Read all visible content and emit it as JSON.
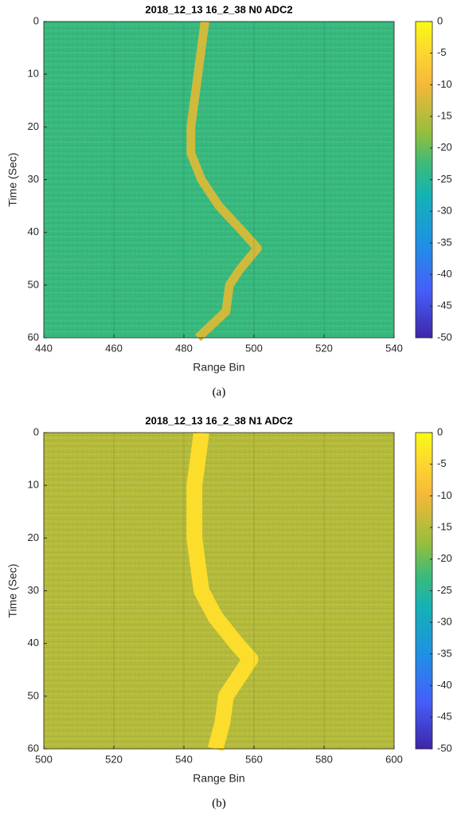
{
  "chart_data": [
    {
      "type": "heatmap",
      "title": "2018_12_13 16_2_38 N0 ADC2",
      "caption": "(a)",
      "xlabel": "Range Bin",
      "ylabel": "Time (Sec)",
      "xlim": [
        440,
        540
      ],
      "xticks": [
        440,
        460,
        480,
        500,
        520,
        540
      ],
      "ylim": [
        0,
        60
      ],
      "yticks": [
        0,
        10,
        20,
        30,
        40,
        50,
        60
      ],
      "y_reversed": true,
      "clim": [
        -50,
        0
      ],
      "cticks": [
        0,
        -5,
        -10,
        -15,
        -20,
        -25,
        -30,
        -35,
        -40,
        -45,
        -50
      ],
      "colormap": "parula",
      "grid": true,
      "background_level": -23,
      "ridge": {
        "time": [
          0,
          5,
          10,
          15,
          20,
          25,
          30,
          35,
          40,
          43,
          47,
          50,
          55,
          60
        ],
        "range": [
          486,
          485,
          484,
          483,
          482,
          482,
          485,
          490,
          497,
          501,
          496,
          493,
          492,
          484
        ],
        "level": -13,
        "width": 2.5
      }
    },
    {
      "type": "heatmap",
      "title": "2018_12_13 16_2_38 N1 ADC2",
      "caption": "(b)",
      "xlabel": "Range Bin",
      "ylabel": "Time (Sec)",
      "xlim": [
        500,
        600
      ],
      "xticks": [
        500,
        520,
        540,
        560,
        580,
        600
      ],
      "ylim": [
        0,
        60
      ],
      "yticks": [
        0,
        10,
        20,
        30,
        40,
        50,
        60
      ],
      "y_reversed": true,
      "clim": [
        -50,
        0
      ],
      "cticks": [
        0,
        -5,
        -10,
        -15,
        -20,
        -25,
        -30,
        -35,
        -40,
        -45,
        -50
      ],
      "colormap": "parula",
      "grid": true,
      "background_level": -15,
      "ridge": {
        "time": [
          0,
          5,
          10,
          15,
          20,
          25,
          30,
          35,
          40,
          43,
          47,
          50,
          55,
          60
        ],
        "range": [
          545,
          544,
          543,
          543,
          543,
          544,
          545,
          549,
          555,
          559,
          555,
          552,
          551,
          549
        ],
        "level": -4,
        "width": 4.5
      }
    }
  ]
}
